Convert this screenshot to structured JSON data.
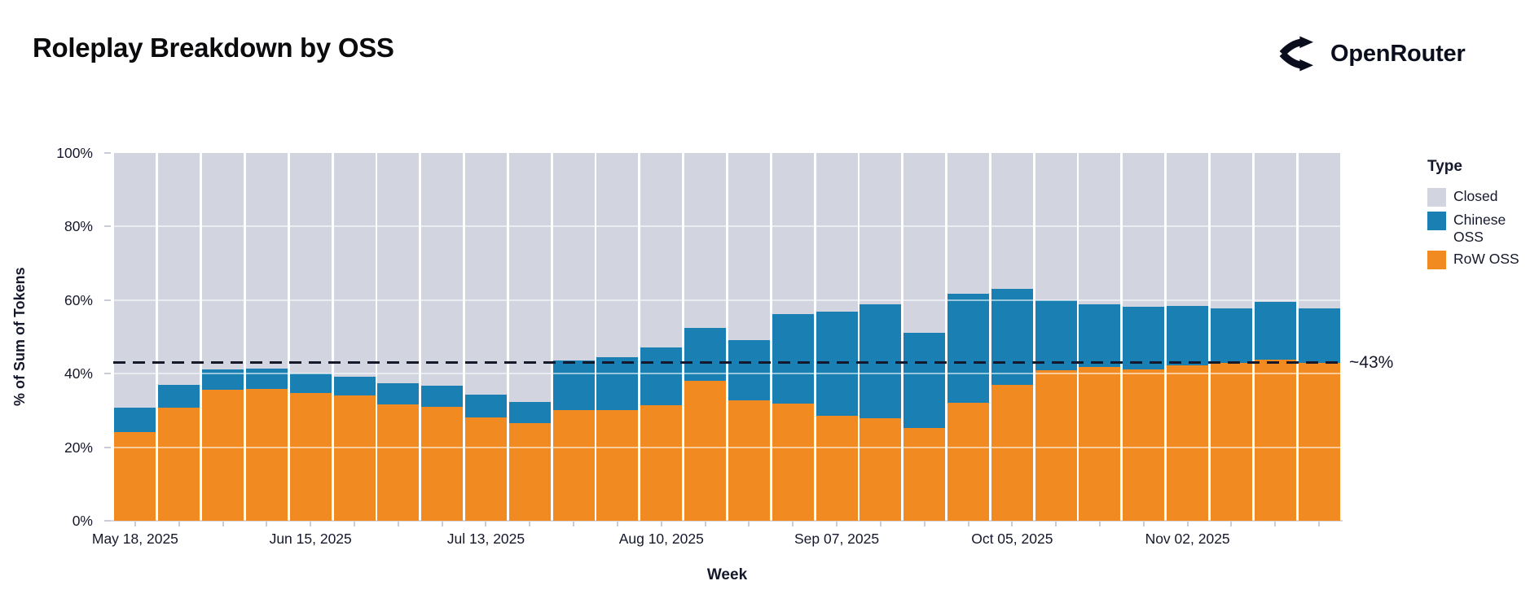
{
  "header": {
    "title": "Roleplay Breakdown by OSS",
    "brand": "OpenRouter"
  },
  "chart_data": {
    "type": "bar",
    "stacked": true,
    "title": "Roleplay Breakdown by OSS",
    "xlabel": "Week",
    "ylabel": "% of Sum of Tokens",
    "ylim": [
      0,
      100
    ],
    "grid": "horizontal-white-lines",
    "y_tick_labels": [
      "0%",
      "20%",
      "40%",
      "60%",
      "80%",
      "100%"
    ],
    "y_tick_values": [
      0,
      20,
      40,
      60,
      80,
      100
    ],
    "x_tick_labels_shown": [
      "May 18, 2025",
      "Jun 15, 2025",
      "Jul 13, 2025",
      "Aug 10, 2025",
      "Sep 07, 2025",
      "Oct 05, 2025",
      "Nov 02, 2025"
    ],
    "x_label_every_n_bars": 4,
    "categories": [
      "May 18, 2025",
      "May 25, 2025",
      "Jun 01, 2025",
      "Jun 08, 2025",
      "Jun 15, 2025",
      "Jun 22, 2025",
      "Jun 29, 2025",
      "Jul 06, 2025",
      "Jul 13, 2025",
      "Jul 20, 2025",
      "Jul 27, 2025",
      "Aug 03, 2025",
      "Aug 10, 2025",
      "Aug 17, 2025",
      "Aug 24, 2025",
      "Aug 31, 2025",
      "Sep 07, 2025",
      "Sep 14, 2025",
      "Sep 21, 2025",
      "Sep 28, 2025",
      "Oct 05, 2025",
      "Oct 12, 2025",
      "Oct 19, 2025",
      "Oct 26, 2025",
      "Nov 02, 2025",
      "Nov 09, 2025",
      "Nov 16, 2025",
      "Nov 23, 2025"
    ],
    "series": [
      {
        "name": "RoW OSS",
        "color": "#f18a21",
        "values": [
          24.2,
          30.7,
          35.6,
          35.9,
          34.8,
          34.1,
          31.6,
          31.0,
          28.0,
          26.5,
          30.1,
          30.1,
          31.4,
          38.1,
          32.7,
          31.9,
          28.5,
          27.9,
          25.3,
          32.1,
          37.0,
          41.0,
          41.8,
          41.2,
          42.3,
          43.0,
          43.8,
          43.0
        ]
      },
      {
        "name": "Chinese OSS",
        "color": "#1a80b4",
        "values": [
          6.5,
          6.2,
          5.6,
          5.4,
          5.3,
          5.1,
          5.7,
          5.7,
          6.4,
          5.8,
          13.4,
          14.3,
          15.8,
          14.4,
          16.5,
          24.3,
          28.4,
          31.0,
          25.7,
          29.6,
          26.0,
          18.9,
          17.1,
          17.0,
          16.2,
          14.8,
          15.7,
          14.8
        ]
      },
      {
        "name": "Closed",
        "color": "#d2d4df",
        "values": [
          69.3,
          63.1,
          58.8,
          58.7,
          59.9,
          60.8,
          62.7,
          63.3,
          65.6,
          67.7,
          56.5,
          55.6,
          52.8,
          47.5,
          50.8,
          43.8,
          43.1,
          41.1,
          49.0,
          38.3,
          37.0,
          40.1,
          41.1,
          41.8,
          41.5,
          42.2,
          40.5,
          42.2
        ]
      }
    ],
    "annotation": {
      "label": "~43%",
      "value": 43.1,
      "style": "black-dashed-horizontal-line"
    },
    "legend": {
      "title": "Type",
      "position": "right",
      "items": [
        {
          "label": "Closed",
          "color": "#d2d4df"
        },
        {
          "label": "Chinese OSS",
          "color": "#1a80b4"
        },
        {
          "label": "RoW OSS",
          "color": "#f18a21"
        }
      ]
    }
  },
  "colors": {
    "row_oss": "#f18a21",
    "chinese_oss": "#1a80b4",
    "closed": "#d2d4df",
    "axis_text": "#15182b",
    "tick_mark": "#c9ccd6",
    "dashed_line": "#15172b",
    "background": "#ffffff"
  }
}
